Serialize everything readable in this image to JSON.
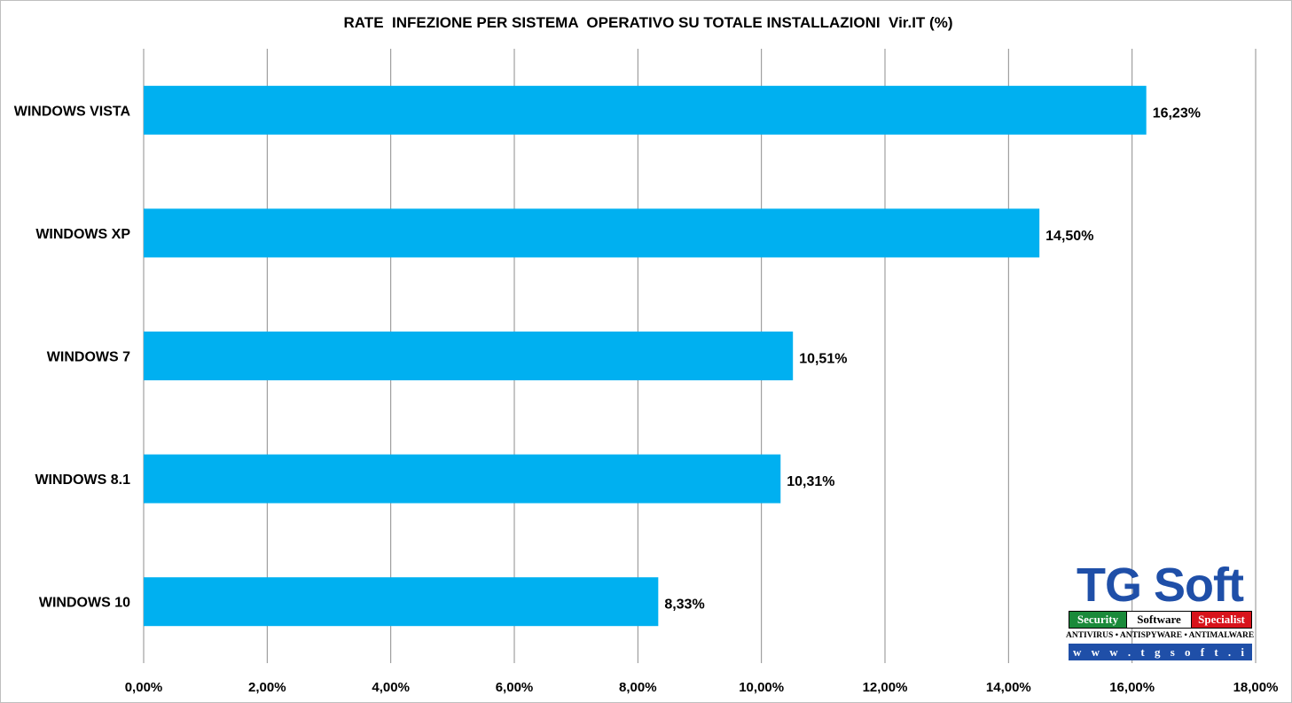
{
  "chart_data": {
    "type": "bar",
    "orientation": "horizontal",
    "title": "RATE  INFEZIONE PER SISTEMA  OPERATIVO SU TOTALE INSTALLAZIONI  Vir.IT (%)",
    "categories": [
      "WINDOWS VISTA",
      "WINDOWS XP",
      "WINDOWS 7",
      "WINDOWS 8.1",
      "WINDOWS 10"
    ],
    "values": [
      16.23,
      14.5,
      10.51,
      10.31,
      8.33
    ],
    "data_labels": [
      "16,23%",
      "14,50%",
      "10,51%",
      "10,31%",
      "8,33%"
    ],
    "xlim": [
      0,
      18
    ],
    "x_ticks": [
      0,
      2,
      4,
      6,
      8,
      10,
      12,
      14,
      16,
      18
    ],
    "x_tick_labels": [
      "0,00%",
      "2,00%",
      "4,00%",
      "6,00%",
      "8,00%",
      "10,00%",
      "12,00%",
      "14,00%",
      "16,00%",
      "18,00%"
    ],
    "grid": "vertical",
    "bar_color": "#00b0f0",
    "legend": "none"
  },
  "logo": {
    "title": "TG Soft",
    "word1": "Security",
    "word2": "Software",
    "word3": "Specialist",
    "tagline": "ANTIVIRUS • ANTISPYWARE • ANTIMALWARE",
    "url": "w w w . t g s o f t . i t"
  }
}
